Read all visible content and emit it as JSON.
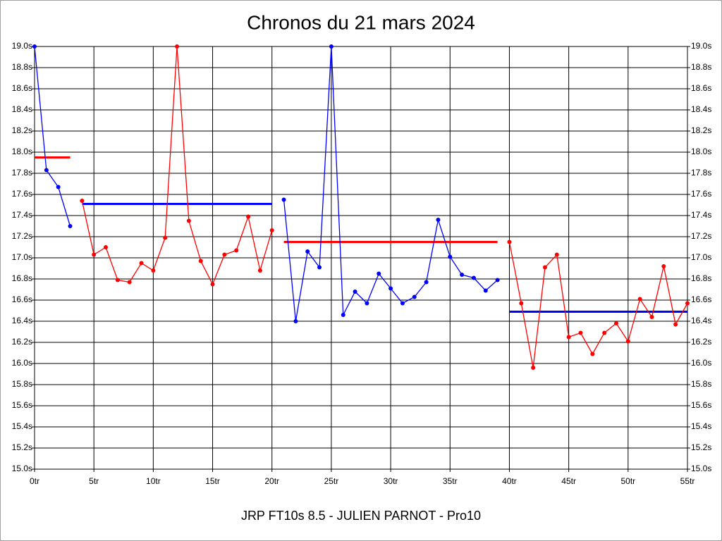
{
  "chart_data": {
    "type": "line",
    "title": "Chronos du 21 mars 2024",
    "xlabel": "JRP FT10s 8.5 - JULIEN PARNOT - Pro10",
    "xlim": [
      0,
      55
    ],
    "xticks": [
      {
        "value": 0,
        "label": "0tr"
      },
      {
        "value": 5,
        "label": "5tr"
      },
      {
        "value": 10,
        "label": "10tr"
      },
      {
        "value": 15,
        "label": "15tr"
      },
      {
        "value": 20,
        "label": "20tr"
      },
      {
        "value": 25,
        "label": "25tr"
      },
      {
        "value": 30,
        "label": "30tr"
      },
      {
        "value": 35,
        "label": "35tr"
      },
      {
        "value": 40,
        "label": "40tr"
      },
      {
        "value": 45,
        "label": "45tr"
      },
      {
        "value": 50,
        "label": "50tr"
      },
      {
        "value": 55,
        "label": "55tr"
      }
    ],
    "ylim": [
      15.0,
      19.0
    ],
    "yticks": [
      {
        "value": 15.0,
        "label": "15.0s"
      },
      {
        "value": 15.2,
        "label": "15.2s"
      },
      {
        "value": 15.4,
        "label": "15.4s"
      },
      {
        "value": 15.6,
        "label": "15.6s"
      },
      {
        "value": 15.8,
        "label": "15.8s"
      },
      {
        "value": 16.0,
        "label": "16.0s"
      },
      {
        "value": 16.2,
        "label": "16.2s"
      },
      {
        "value": 16.4,
        "label": "16.4s"
      },
      {
        "value": 16.6,
        "label": "16.6s"
      },
      {
        "value": 16.8,
        "label": "16.8s"
      },
      {
        "value": 17.0,
        "label": "17.0s"
      },
      {
        "value": 17.2,
        "label": "17.2s"
      },
      {
        "value": 17.4,
        "label": "17.4s"
      },
      {
        "value": 17.6,
        "label": "17.6s"
      },
      {
        "value": 17.8,
        "label": "17.8s"
      },
      {
        "value": 18.0,
        "label": "18.0s"
      },
      {
        "value": 18.2,
        "label": "18.2s"
      },
      {
        "value": 18.4,
        "label": "18.4s"
      },
      {
        "value": 18.6,
        "label": "18.6s"
      },
      {
        "value": 18.8,
        "label": "18.8s"
      },
      {
        "value": 19.0,
        "label": "19.0s"
      }
    ],
    "grid": true,
    "series": [
      {
        "color": "#0000ff",
        "x": [
          0,
          1,
          2,
          3
        ],
        "values": [
          19.0,
          17.83,
          17.67,
          17.3
        ]
      },
      {
        "color": "#ff0000",
        "x": [
          4,
          5,
          6,
          7,
          8,
          9,
          10,
          11,
          12,
          13,
          14,
          15,
          16,
          17,
          18,
          19,
          20
        ],
        "values": [
          17.54,
          17.03,
          17.1,
          16.79,
          16.77,
          16.95,
          16.88,
          17.19,
          19.0,
          17.35,
          16.97,
          16.75,
          17.03,
          17.07,
          17.39,
          16.88,
          17.26
        ]
      },
      {
        "color": "#0000ff",
        "x": [
          21,
          22,
          23,
          24,
          25,
          26,
          27,
          28,
          29,
          30,
          31,
          32,
          33,
          34,
          35,
          36,
          37,
          38,
          39
        ],
        "values": [
          17.55,
          16.4,
          17.06,
          16.91,
          19.0,
          16.46,
          16.68,
          16.57,
          16.85,
          16.71,
          16.57,
          16.63,
          16.77,
          17.36,
          17.01,
          16.84,
          16.81,
          16.69,
          16.79
        ]
      },
      {
        "color": "#ff0000",
        "x": [
          40,
          41,
          42,
          43,
          44,
          45,
          46,
          47,
          48,
          49,
          50,
          51,
          52,
          53,
          54,
          55
        ],
        "values": [
          17.15,
          16.57,
          15.96,
          16.91,
          17.03,
          16.25,
          16.29,
          16.09,
          16.29,
          16.38,
          16.21,
          16.61,
          16.44,
          16.92,
          16.37,
          16.57
        ]
      }
    ],
    "averages": [
      {
        "color": "#ff0000",
        "start": 0,
        "end": 3,
        "value": 17.95
      },
      {
        "color": "#0000ff",
        "start": 4,
        "end": 20,
        "value": 17.51
      },
      {
        "color": "#ff0000",
        "start": 21,
        "end": 39,
        "value": 17.15
      },
      {
        "color": "#0000ff",
        "start": 40,
        "end": 55,
        "value": 16.49
      }
    ]
  }
}
